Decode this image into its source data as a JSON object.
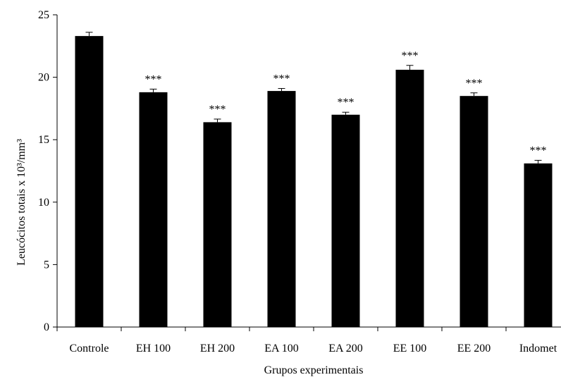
{
  "chart_data": {
    "type": "bar",
    "categories": [
      "Controle",
      "EH 100",
      "EH 200",
      "EA 100",
      "EA 200",
      "EE 100",
      "EE 200",
      "Indomet"
    ],
    "series": [
      {
        "values": [
          23.3,
          18.8,
          16.4,
          18.9,
          17.0,
          20.6,
          18.5,
          13.1
        ],
        "errors": [
          0.3,
          0.25,
          0.25,
          0.2,
          0.2,
          0.35,
          0.25,
          0.25
        ],
        "annotations": [
          "",
          "***",
          "***",
          "***",
          "***",
          "***",
          "***",
          "***"
        ]
      }
    ],
    "ylabel": "Leucócitos totais x 10³/mm³",
    "xlabel": "Grupos experimentais",
    "ylim": [
      0,
      25
    ],
    "yticks": [
      0,
      5,
      10,
      15,
      20,
      25
    ],
    "grid": false,
    "bar_color": "#000000"
  }
}
